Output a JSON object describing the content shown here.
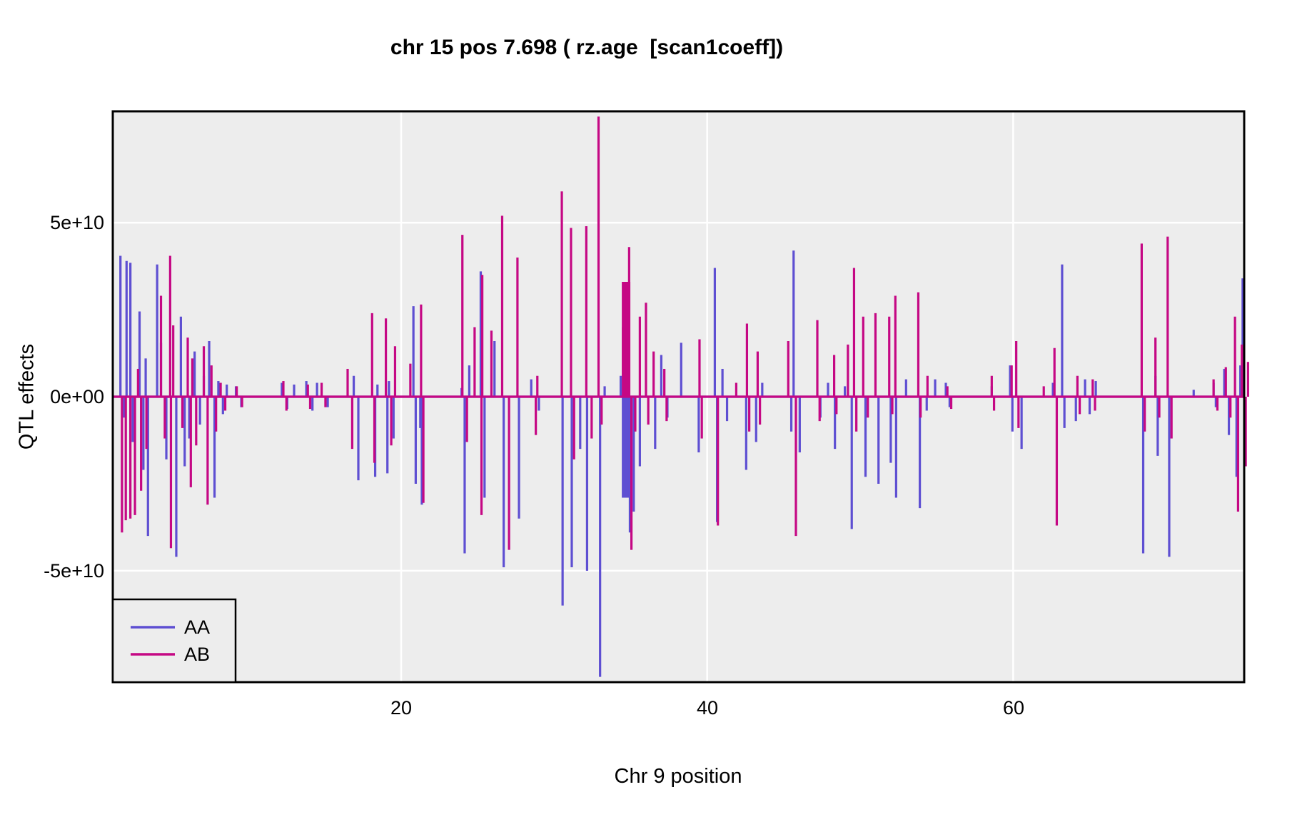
{
  "title": "chr 15 pos 7.698 ( rz.age  [scan1coeff])",
  "axes": {
    "y_label": "QTL effects",
    "x_label": "Chr 9 position",
    "y_ticks": [
      "5e+10",
      "0e+00",
      "-5e+10"
    ],
    "x_ticks": [
      "20",
      "40",
      "60"
    ]
  },
  "legend": {
    "items": [
      {
        "label": "AA",
        "color": "#5E4FD2"
      },
      {
        "label": "AB",
        "color": "#C50884"
      }
    ]
  },
  "colors": {
    "panel_bg": "#EDEDED",
    "gridline": "#FFFFFF",
    "panel_border": "#000000",
    "text": "#000000",
    "aa": "#5E4FD2",
    "ab": "#C50884"
  },
  "chart_data": {
    "type": "line",
    "title": "chr 15 pos 7.698 ( rz.age  [scan1coeff])",
    "xlabel": "Chr 9 position",
    "ylabel": "QTL effects",
    "x_range": [
      1.15,
      75.1
    ],
    "y_range": [
      -8.2,
      8.2
    ],
    "y_unit_multiplier": 10000000000,
    "x_tick_values": [
      20,
      40,
      60
    ],
    "y_tick_values": [
      5,
      0,
      -5
    ],
    "grid": true,
    "legend_position": "bottom-left",
    "series": [
      {
        "name": "AA",
        "color": "#5E4FD2",
        "baseline": 0,
        "spikes": [
          [
            1.65,
            4.05
          ],
          [
            1.9,
            -0.6
          ],
          [
            2.05,
            3.9
          ],
          [
            2.3,
            3.85
          ],
          [
            2.45,
            -1.3
          ],
          [
            2.9,
            2.45
          ],
          [
            3.15,
            -2.1
          ],
          [
            3.3,
            1.1
          ],
          [
            3.45,
            -4.0
          ],
          [
            4.05,
            3.8
          ],
          [
            4.3,
            1.55
          ],
          [
            4.65,
            -1.8
          ],
          [
            5.3,
            -4.6
          ],
          [
            5.6,
            2.3
          ],
          [
            5.85,
            -2.0
          ],
          [
            6.15,
            -1.2
          ],
          [
            6.5,
            1.3
          ],
          [
            6.85,
            -0.8
          ],
          [
            7.1,
            0.6
          ],
          [
            7.45,
            1.6
          ],
          [
            7.8,
            -2.9
          ],
          [
            8.05,
            0.45
          ],
          [
            8.35,
            -0.5
          ],
          [
            8.6,
            0.35
          ],
          [
            9.2,
            0.3
          ],
          [
            9.55,
            -0.3
          ],
          [
            12.2,
            0.4
          ],
          [
            12.55,
            -0.35
          ],
          [
            13.0,
            0.35
          ],
          [
            13.8,
            0.45
          ],
          [
            14.2,
            -0.4
          ],
          [
            14.5,
            0.4
          ],
          [
            15.2,
            -0.3
          ],
          [
            16.9,
            0.6
          ],
          [
            17.2,
            -2.4
          ],
          [
            18.3,
            -2.3
          ],
          [
            18.45,
            0.35
          ],
          [
            19.1,
            -2.2
          ],
          [
            19.2,
            0.45
          ],
          [
            19.5,
            -1.2
          ],
          [
            20.8,
            2.6
          ],
          [
            20.95,
            -2.5
          ],
          [
            21.25,
            -0.9
          ],
          [
            21.35,
            -3.1
          ],
          [
            23.95,
            0.25
          ],
          [
            24.15,
            -4.5
          ],
          [
            24.45,
            0.9
          ],
          [
            25.2,
            3.6
          ],
          [
            25.45,
            -2.9
          ],
          [
            26.1,
            1.6
          ],
          [
            26.7,
            -4.9
          ],
          [
            27.7,
            -3.5
          ],
          [
            28.5,
            0.5
          ],
          [
            29.0,
            -0.4
          ],
          [
            30.55,
            -6.0
          ],
          [
            31.15,
            -4.9
          ],
          [
            31.7,
            -1.5
          ],
          [
            32.15,
            -5.0
          ],
          [
            33.0,
            -8.05
          ],
          [
            33.3,
            0.3
          ],
          [
            34.35,
            0.6
          ],
          [
            34.7,
            -2.9,
            12
          ],
          [
            34.95,
            -3.9
          ],
          [
            35.2,
            -3.3
          ],
          [
            35.6,
            -2.0
          ],
          [
            36.6,
            -1.5
          ],
          [
            37.0,
            1.2
          ],
          [
            37.4,
            -0.6
          ],
          [
            38.3,
            1.55
          ],
          [
            39.45,
            -1.6
          ],
          [
            40.5,
            3.7
          ],
          [
            40.65,
            -3.6
          ],
          [
            41.0,
            0.8
          ],
          [
            41.3,
            -0.7
          ],
          [
            42.55,
            -2.1
          ],
          [
            43.2,
            -1.3
          ],
          [
            43.6,
            0.4
          ],
          [
            45.5,
            -1.0
          ],
          [
            45.65,
            4.2
          ],
          [
            46.05,
            -1.6
          ],
          [
            47.4,
            -0.6
          ],
          [
            47.9,
            0.4
          ],
          [
            48.35,
            -1.5
          ],
          [
            49.0,
            0.3
          ],
          [
            49.45,
            -3.8
          ],
          [
            50.35,
            -2.3
          ],
          [
            51.2,
            -2.5
          ],
          [
            52.0,
            -1.9
          ],
          [
            52.35,
            -2.9
          ],
          [
            53.0,
            0.5
          ],
          [
            53.9,
            -3.2
          ],
          [
            54.35,
            -0.4
          ],
          [
            54.9,
            0.5
          ],
          [
            55.6,
            0.4
          ],
          [
            55.85,
            -0.3
          ],
          [
            58.6,
            0.3
          ],
          [
            59.8,
            0.9
          ],
          [
            59.95,
            -1.0
          ],
          [
            60.55,
            -1.5
          ],
          [
            62.6,
            0.4
          ],
          [
            63.2,
            3.8
          ],
          [
            63.35,
            -0.9
          ],
          [
            64.1,
            -0.7
          ],
          [
            64.7,
            0.5
          ],
          [
            65.0,
            -0.5
          ],
          [
            65.4,
            0.45
          ],
          [
            68.5,
            -4.5
          ],
          [
            69.3,
            0.6
          ],
          [
            69.45,
            -1.7
          ],
          [
            70.2,
            -4.6
          ],
          [
            71.8,
            0.2
          ],
          [
            73.1,
            0.4
          ],
          [
            73.25,
            -0.3
          ],
          [
            73.8,
            0.8
          ],
          [
            74.1,
            -1.1
          ],
          [
            74.6,
            -2.3
          ],
          [
            74.85,
            0.9
          ],
          [
            75.0,
            3.4
          ],
          [
            75.15,
            -0.9
          ]
        ]
      },
      {
        "name": "AB",
        "color": "#C50884",
        "baseline": 0,
        "spikes": [
          [
            1.75,
            -3.9
          ],
          [
            2.0,
            -3.55
          ],
          [
            2.3,
            -3.5
          ],
          [
            2.6,
            -3.4
          ],
          [
            2.8,
            0.8
          ],
          [
            3.0,
            -2.7
          ],
          [
            3.35,
            -1.5
          ],
          [
            4.3,
            2.9
          ],
          [
            4.55,
            -1.2
          ],
          [
            4.9,
            4.05
          ],
          [
            4.95,
            -4.35
          ],
          [
            5.1,
            2.05
          ],
          [
            5.7,
            -0.9
          ],
          [
            6.05,
            1.7
          ],
          [
            6.25,
            -2.6
          ],
          [
            6.35,
            1.1
          ],
          [
            6.6,
            -1.4
          ],
          [
            7.1,
            1.45
          ],
          [
            7.35,
            -3.1
          ],
          [
            7.6,
            0.9
          ],
          [
            7.9,
            -1.0
          ],
          [
            8.2,
            0.4
          ],
          [
            8.5,
            -0.4
          ],
          [
            9.25,
            0.3
          ],
          [
            9.6,
            -0.3
          ],
          [
            12.3,
            0.45
          ],
          [
            12.5,
            -0.4
          ],
          [
            13.9,
            0.35
          ],
          [
            14.05,
            -0.35
          ],
          [
            14.8,
            0.4
          ],
          [
            15.05,
            -0.3
          ],
          [
            16.5,
            0.8
          ],
          [
            16.8,
            -1.5
          ],
          [
            18.1,
            2.4
          ],
          [
            18.25,
            -1.9
          ],
          [
            19.0,
            2.25
          ],
          [
            19.35,
            -1.4
          ],
          [
            19.6,
            1.45
          ],
          [
            20.6,
            0.95
          ],
          [
            21.3,
            2.65
          ],
          [
            21.45,
            -3.05
          ],
          [
            24.0,
            4.65
          ],
          [
            24.3,
            -1.3
          ],
          [
            24.8,
            2.0
          ],
          [
            25.25,
            -3.4
          ],
          [
            25.3,
            3.5
          ],
          [
            25.9,
            1.9
          ],
          [
            26.6,
            5.2
          ],
          [
            27.05,
            -4.4
          ],
          [
            27.6,
            4.0
          ],
          [
            28.8,
            -1.1
          ],
          [
            28.9,
            0.6
          ],
          [
            30.5,
            5.9
          ],
          [
            31.1,
            4.85
          ],
          [
            31.3,
            -1.8
          ],
          [
            32.1,
            4.9
          ],
          [
            32.45,
            -1.2
          ],
          [
            32.9,
            8.05
          ],
          [
            33.1,
            -0.8
          ],
          [
            34.5,
            2.0
          ],
          [
            34.7,
            3.3,
            12
          ],
          [
            34.9,
            4.3
          ],
          [
            35.05,
            -4.4
          ],
          [
            35.3,
            -1.0
          ],
          [
            35.6,
            2.3
          ],
          [
            36.0,
            2.7
          ],
          [
            36.15,
            -0.8
          ],
          [
            36.5,
            1.3
          ],
          [
            37.2,
            0.8
          ],
          [
            37.35,
            -0.7
          ],
          [
            39.5,
            1.65
          ],
          [
            39.65,
            -1.2
          ],
          [
            40.7,
            -3.7
          ],
          [
            41.9,
            0.4
          ],
          [
            42.6,
            2.1
          ],
          [
            42.75,
            -1.0
          ],
          [
            43.3,
            1.3
          ],
          [
            43.45,
            -0.8
          ],
          [
            45.3,
            1.6
          ],
          [
            45.8,
            -4.0
          ],
          [
            47.2,
            2.2
          ],
          [
            47.35,
            -0.7
          ],
          [
            48.3,
            1.2
          ],
          [
            48.45,
            -0.5
          ],
          [
            49.2,
            1.5
          ],
          [
            49.6,
            3.7
          ],
          [
            49.75,
            -1.0
          ],
          [
            50.2,
            2.3
          ],
          [
            50.5,
            -0.6
          ],
          [
            51.0,
            2.4
          ],
          [
            51.9,
            2.3
          ],
          [
            52.1,
            -0.5
          ],
          [
            52.3,
            2.9
          ],
          [
            53.8,
            3.0
          ],
          [
            53.95,
            -0.6
          ],
          [
            54.4,
            0.6
          ],
          [
            55.7,
            0.3
          ],
          [
            55.95,
            -0.35
          ],
          [
            58.6,
            0.6
          ],
          [
            58.75,
            -0.4
          ],
          [
            59.9,
            0.9
          ],
          [
            60.2,
            1.6
          ],
          [
            60.35,
            -0.9
          ],
          [
            62.0,
            0.3
          ],
          [
            62.7,
            1.4
          ],
          [
            62.85,
            -3.7
          ],
          [
            64.2,
            0.6
          ],
          [
            64.35,
            -0.5
          ],
          [
            65.2,
            0.5
          ],
          [
            65.35,
            -0.4
          ],
          [
            68.4,
            4.4
          ],
          [
            68.6,
            -1.0
          ],
          [
            69.3,
            1.7
          ],
          [
            69.55,
            -0.6
          ],
          [
            70.1,
            4.6
          ],
          [
            70.35,
            -1.2
          ],
          [
            73.1,
            0.5
          ],
          [
            73.35,
            -0.4
          ],
          [
            73.9,
            0.85
          ],
          [
            74.2,
            -0.6
          ],
          [
            74.5,
            2.3
          ],
          [
            74.7,
            -3.3
          ],
          [
            74.95,
            1.5
          ],
          [
            75.2,
            -2.0
          ],
          [
            75.35,
            1.0
          ]
        ]
      }
    ]
  }
}
